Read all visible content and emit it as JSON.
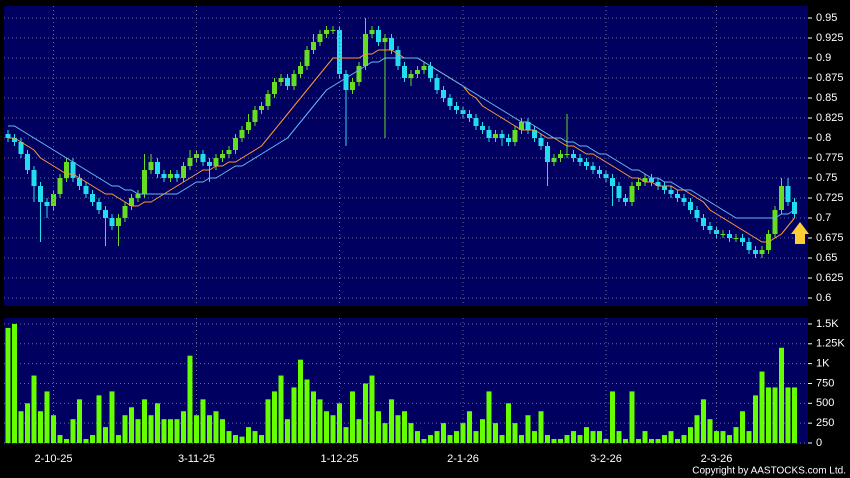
{
  "chart_data": [
    {
      "type": "candlestick",
      "open": [
        0.805,
        0.8,
        0.795,
        0.78,
        0.76,
        0.74,
        0.72,
        0.715,
        0.73,
        0.75,
        0.77,
        0.75,
        0.74,
        0.73,
        0.72,
        0.71,
        0.7,
        0.69,
        0.7,
        0.715,
        0.725,
        0.73,
        0.76,
        0.77,
        0.755,
        0.75,
        0.755,
        0.75,
        0.765,
        0.775,
        0.78,
        0.77,
        0.765,
        0.775,
        0.78,
        0.785,
        0.8,
        0.81,
        0.82,
        0.835,
        0.84,
        0.855,
        0.87,
        0.875,
        0.865,
        0.88,
        0.89,
        0.91,
        0.92,
        0.93,
        0.935,
        0.935,
        0.88,
        0.86,
        0.87,
        0.89,
        0.93,
        0.935,
        0.92,
        0.925,
        0.91,
        0.89,
        0.875,
        0.88,
        0.885,
        0.89,
        0.875,
        0.86,
        0.85,
        0.84,
        0.835,
        0.83,
        0.825,
        0.815,
        0.81,
        0.8,
        0.805,
        0.8,
        0.795,
        0.81,
        0.82,
        0.81,
        0.8,
        0.79,
        0.77,
        0.775,
        0.78,
        0.78,
        0.775,
        0.77,
        0.765,
        0.76,
        0.755,
        0.75,
        0.74,
        0.725,
        0.72,
        0.74,
        0.745,
        0.75,
        0.745,
        0.74,
        0.735,
        0.73,
        0.725,
        0.72,
        0.71,
        0.7,
        0.69,
        0.685,
        0.68,
        0.68,
        0.675,
        0.675,
        0.67,
        0.66,
        0.655,
        0.66,
        0.68,
        0.71,
        0.74,
        0.72
      ],
      "high": [
        0.81,
        0.805,
        0.8,
        0.785,
        0.765,
        0.745,
        0.725,
        0.735,
        0.755,
        0.775,
        0.775,
        0.755,
        0.745,
        0.735,
        0.725,
        0.715,
        0.705,
        0.705,
        0.72,
        0.73,
        0.735,
        0.78,
        0.78,
        0.775,
        0.76,
        0.76,
        0.76,
        0.77,
        0.785,
        0.785,
        0.785,
        0.775,
        0.78,
        0.785,
        0.79,
        0.805,
        0.815,
        0.83,
        0.84,
        0.845,
        0.86,
        0.875,
        0.88,
        0.88,
        0.885,
        0.895,
        0.915,
        0.93,
        0.935,
        0.94,
        0.94,
        0.94,
        0.885,
        0.875,
        0.895,
        0.95,
        0.94,
        0.94,
        0.93,
        0.93,
        0.915,
        0.895,
        0.885,
        0.89,
        0.895,
        0.895,
        0.88,
        0.865,
        0.855,
        0.845,
        0.84,
        0.835,
        0.83,
        0.82,
        0.815,
        0.81,
        0.81,
        0.805,
        0.815,
        0.825,
        0.825,
        0.815,
        0.805,
        0.795,
        0.78,
        0.785,
        0.83,
        0.785,
        0.78,
        0.775,
        0.77,
        0.765,
        0.76,
        0.755,
        0.745,
        0.73,
        0.745,
        0.75,
        0.755,
        0.755,
        0.75,
        0.745,
        0.74,
        0.735,
        0.73,
        0.725,
        0.715,
        0.705,
        0.695,
        0.69,
        0.685,
        0.685,
        0.68,
        0.68,
        0.675,
        0.665,
        0.665,
        0.685,
        0.715,
        0.75,
        0.75,
        0.725
      ],
      "low": [
        0.795,
        0.79,
        0.775,
        0.755,
        0.72,
        0.67,
        0.7,
        0.71,
        0.725,
        0.745,
        0.745,
        0.735,
        0.725,
        0.715,
        0.705,
        0.665,
        0.685,
        0.665,
        0.695,
        0.71,
        0.72,
        0.725,
        0.755,
        0.75,
        0.745,
        0.745,
        0.745,
        0.745,
        0.76,
        0.77,
        0.765,
        0.745,
        0.76,
        0.77,
        0.775,
        0.78,
        0.795,
        0.805,
        0.815,
        0.83,
        0.835,
        0.85,
        0.865,
        0.86,
        0.86,
        0.875,
        0.885,
        0.905,
        0.915,
        0.925,
        0.93,
        0.875,
        0.79,
        0.855,
        0.865,
        0.885,
        0.925,
        0.915,
        0.8,
        0.905,
        0.885,
        0.87,
        0.865,
        0.875,
        0.88,
        0.87,
        0.855,
        0.845,
        0.835,
        0.83,
        0.825,
        0.82,
        0.81,
        0.805,
        0.795,
        0.795,
        0.79,
        0.79,
        0.79,
        0.805,
        0.805,
        0.795,
        0.785,
        0.74,
        0.765,
        0.77,
        0.775,
        0.77,
        0.765,
        0.76,
        0.755,
        0.75,
        0.745,
        0.715,
        0.72,
        0.715,
        0.715,
        0.735,
        0.74,
        0.74,
        0.735,
        0.73,
        0.725,
        0.72,
        0.715,
        0.705,
        0.695,
        0.685,
        0.68,
        0.675,
        0.675,
        0.67,
        0.67,
        0.665,
        0.655,
        0.65,
        0.65,
        0.655,
        0.675,
        0.705,
        0.715,
        0.7
      ],
      "close": [
        0.8,
        0.795,
        0.78,
        0.76,
        0.74,
        0.72,
        0.715,
        0.73,
        0.75,
        0.77,
        0.75,
        0.74,
        0.73,
        0.72,
        0.71,
        0.7,
        0.69,
        0.7,
        0.715,
        0.725,
        0.73,
        0.76,
        0.77,
        0.755,
        0.75,
        0.755,
        0.75,
        0.765,
        0.775,
        0.78,
        0.77,
        0.765,
        0.775,
        0.78,
        0.785,
        0.8,
        0.81,
        0.82,
        0.835,
        0.84,
        0.855,
        0.87,
        0.875,
        0.865,
        0.88,
        0.89,
        0.91,
        0.92,
        0.93,
        0.935,
        0.935,
        0.88,
        0.86,
        0.87,
        0.89,
        0.93,
        0.935,
        0.92,
        0.925,
        0.91,
        0.89,
        0.875,
        0.88,
        0.885,
        0.89,
        0.875,
        0.86,
        0.85,
        0.84,
        0.835,
        0.83,
        0.825,
        0.815,
        0.81,
        0.8,
        0.805,
        0.8,
        0.795,
        0.81,
        0.82,
        0.81,
        0.8,
        0.79,
        0.77,
        0.775,
        0.78,
        0.78,
        0.775,
        0.77,
        0.765,
        0.76,
        0.755,
        0.75,
        0.74,
        0.725,
        0.72,
        0.74,
        0.745,
        0.75,
        0.745,
        0.74,
        0.735,
        0.73,
        0.725,
        0.72,
        0.71,
        0.7,
        0.69,
        0.685,
        0.68,
        0.68,
        0.675,
        0.675,
        0.67,
        0.66,
        0.655,
        0.66,
        0.68,
        0.71,
        0.74,
        0.72,
        0.705
      ],
      "up_color": "#66dd22",
      "down_color": "#22ddee",
      "overlays": [
        {
          "color": "#ff9933",
          "values": [
            0.8,
            0.8,
            0.795,
            0.79,
            0.785,
            0.775,
            0.77,
            0.765,
            0.76,
            0.755,
            0.755,
            0.75,
            0.745,
            0.74,
            0.735,
            0.73,
            0.73,
            0.725,
            0.72,
            0.715,
            0.715,
            0.72,
            0.72,
            0.725,
            0.73,
            0.735,
            0.74,
            0.745,
            0.75,
            0.755,
            0.76,
            0.76,
            0.765,
            0.765,
            0.77,
            0.77,
            0.775,
            0.78,
            0.785,
            0.79,
            0.8,
            0.81,
            0.82,
            0.83,
            0.84,
            0.85,
            0.86,
            0.87,
            0.88,
            0.89,
            0.9,
            0.9,
            0.9,
            0.9,
            0.9,
            0.905,
            0.905,
            0.91,
            0.91,
            0.91,
            0.905,
            0.9,
            0.9,
            0.9,
            0.895,
            0.89,
            0.885,
            0.88,
            0.875,
            0.87,
            0.865,
            0.855,
            0.85,
            0.84,
            0.835,
            0.83,
            0.825,
            0.82,
            0.815,
            0.81,
            0.81,
            0.81,
            0.805,
            0.8,
            0.8,
            0.795,
            0.79,
            0.79,
            0.785,
            0.78,
            0.78,
            0.775,
            0.77,
            0.765,
            0.76,
            0.755,
            0.75,
            0.75,
            0.745,
            0.745,
            0.74,
            0.74,
            0.74,
            0.735,
            0.735,
            0.73,
            0.725,
            0.72,
            0.71,
            0.705,
            0.7,
            0.695,
            0.69,
            0.685,
            0.68,
            0.675,
            0.67,
            0.67,
            0.675,
            0.68,
            0.69,
            0.7
          ]
        },
        {
          "color": "#66bbee",
          "values": [
            0.815,
            0.815,
            0.81,
            0.805,
            0.8,
            0.795,
            0.79,
            0.785,
            0.78,
            0.775,
            0.77,
            0.765,
            0.76,
            0.755,
            0.75,
            0.745,
            0.74,
            0.74,
            0.735,
            0.735,
            0.73,
            0.73,
            0.73,
            0.73,
            0.73,
            0.73,
            0.73,
            0.735,
            0.74,
            0.745,
            0.745,
            0.75,
            0.75,
            0.755,
            0.76,
            0.765,
            0.765,
            0.77,
            0.775,
            0.78,
            0.785,
            0.79,
            0.795,
            0.8,
            0.81,
            0.82,
            0.83,
            0.84,
            0.85,
            0.86,
            0.865,
            0.87,
            0.875,
            0.88,
            0.885,
            0.89,
            0.895,
            0.895,
            0.9,
            0.9,
            0.9,
            0.9,
            0.9,
            0.9,
            0.895,
            0.89,
            0.885,
            0.88,
            0.875,
            0.87,
            0.865,
            0.86,
            0.855,
            0.85,
            0.845,
            0.84,
            0.835,
            0.83,
            0.825,
            0.82,
            0.82,
            0.815,
            0.81,
            0.805,
            0.8,
            0.8,
            0.795,
            0.795,
            0.79,
            0.79,
            0.785,
            0.78,
            0.78,
            0.775,
            0.77,
            0.765,
            0.76,
            0.76,
            0.755,
            0.75,
            0.75,
            0.745,
            0.745,
            0.74,
            0.735,
            0.735,
            0.73,
            0.725,
            0.72,
            0.715,
            0.71,
            0.705,
            0.7,
            0.7,
            0.7,
            0.7,
            0.7,
            0.7,
            0.7,
            0.705,
            0.705,
            0.71
          ]
        }
      ],
      "ylim": [
        0.59,
        0.965
      ],
      "yticks": [
        0.6,
        0.625,
        0.65,
        0.675,
        0.7,
        0.725,
        0.75,
        0.775,
        0.8,
        0.825,
        0.85,
        0.875,
        0.9,
        0.925,
        0.95
      ],
      "grid": true
    },
    {
      "type": "bar",
      "categories": [
        null,
        null,
        null,
        null,
        null,
        null,
        null,
        "2-10-25",
        null,
        null,
        null,
        null,
        null,
        null,
        null,
        null,
        null,
        null,
        null,
        null,
        null,
        null,
        null,
        null,
        null,
        null,
        null,
        null,
        null,
        "3-11-25",
        null,
        null,
        null,
        null,
        null,
        null,
        null,
        null,
        null,
        null,
        null,
        null,
        null,
        null,
        null,
        null,
        null,
        null,
        null,
        null,
        null,
        "1-12-25",
        null,
        null,
        null,
        null,
        null,
        null,
        null,
        null,
        null,
        null,
        null,
        null,
        null,
        null,
        null,
        null,
        null,
        null,
        "2-1-26",
        null,
        null,
        null,
        null,
        null,
        null,
        null,
        null,
        null,
        null,
        null,
        null,
        null,
        null,
        null,
        null,
        null,
        null,
        null,
        null,
        null,
        "3-2-26",
        null,
        null,
        null,
        null,
        null,
        null,
        null,
        null,
        null,
        null,
        null,
        null,
        null,
        null,
        null,
        null,
        "2-3-26",
        null,
        null,
        null,
        null,
        null,
        null,
        null,
        null,
        null,
        null,
        null,
        null
      ],
      "values": [
        1450,
        1500,
        400,
        500,
        850,
        400,
        650,
        350,
        100,
        50,
        300,
        550,
        50,
        100,
        600,
        200,
        650,
        100,
        350,
        450,
        300,
        550,
        350,
        500,
        300,
        300,
        300,
        400,
        1100,
        350,
        550,
        350,
        400,
        300,
        150,
        100,
        80,
        200,
        150,
        100,
        550,
        650,
        850,
        300,
        700,
        1050,
        800,
        650,
        550,
        400,
        350,
        500,
        200,
        650,
        300,
        750,
        850,
        400,
        250,
        550,
        350,
        400,
        250,
        150,
        50,
        100,
        150,
        250,
        100,
        150,
        250,
        400,
        150,
        300,
        650,
        250,
        100,
        500,
        250,
        100,
        350,
        150,
        400,
        100,
        50,
        50,
        100,
        150,
        100,
        200,
        150,
        150,
        50,
        650,
        150,
        50,
        650,
        50,
        150,
        50,
        50,
        100,
        150,
        50,
        100,
        200,
        350,
        550,
        300,
        150,
        150,
        100,
        200,
        400,
        150,
        600,
        900,
        700,
        700,
        1200,
        700,
        700
      ],
      "color": "#66ff00",
      "ylim": [
        0,
        1575
      ],
      "yticks": [
        0,
        250,
        500,
        750,
        {
          "value": 1000,
          "label": "1K"
        },
        {
          "value": 1250,
          "label": "1.25K"
        },
        {
          "value": 1500,
          "label": "1.5K"
        }
      ],
      "grid": true
    }
  ],
  "copyright": "Copyright by AASTOCKS.com Ltd."
}
